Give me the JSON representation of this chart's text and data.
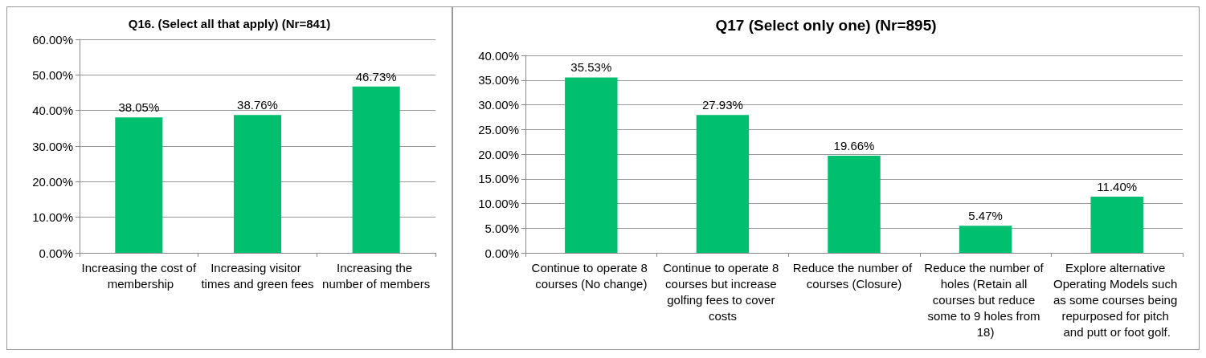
{
  "chart_data": [
    {
      "type": "bar",
      "title": "Q16. (Select all that apply) (Nr=841)",
      "categories": [
        "Increasing the cost of membership",
        "Increasing visitor times and green fees",
        "Increasing the number of members"
      ],
      "values": [
        38.05,
        38.76,
        46.73
      ],
      "value_labels": [
        "38.05%",
        "38.76%",
        "46.73%"
      ],
      "color": "#00bf6f",
      "ylim": [
        0,
        60
      ],
      "yticks": [
        {
          "value": 0,
          "label": "0.00%"
        },
        {
          "value": 10,
          "label": "10.00%"
        },
        {
          "value": 20,
          "label": "20.00%"
        },
        {
          "value": 30,
          "label": "30.00%"
        },
        {
          "value": 40,
          "label": "40.00%"
        },
        {
          "value": 50,
          "label": "50.00%"
        },
        {
          "value": 60,
          "label": "60.00%"
        }
      ],
      "grid": "y"
    },
    {
      "type": "bar",
      "title": "Q17 (Select only one) (Nr=895)",
      "categories": [
        "Continue to operate 8 courses (No change)",
        "Continue to operate 8 courses but increase golfing fees to cover costs",
        "Reduce the number of courses (Closure)",
        "Reduce the number of holes (Retain all courses but reduce some to 9 holes from 18)",
        "Explore alternative Operating Models such as some courses being repurposed for pitch and putt or foot golf."
      ],
      "values": [
        35.53,
        27.93,
        19.66,
        5.47,
        11.4
      ],
      "value_labels": [
        "35.53%",
        "27.93%",
        "19.66%",
        "5.47%",
        "11.40%"
      ],
      "color": "#00bf6f",
      "ylim": [
        0,
        40
      ],
      "yticks": [
        {
          "value": 0,
          "label": "0.00%"
        },
        {
          "value": 5,
          "label": "5.00%"
        },
        {
          "value": 10,
          "label": "10.00%"
        },
        {
          "value": 15,
          "label": "15.00%"
        },
        {
          "value": 20,
          "label": "20.00%"
        },
        {
          "value": 25,
          "label": "25.00%"
        },
        {
          "value": 30,
          "label": "30.00%"
        },
        {
          "value": 35,
          "label": "35.00%"
        },
        {
          "value": 40,
          "label": "40.00%"
        }
      ],
      "grid": "y"
    }
  ]
}
